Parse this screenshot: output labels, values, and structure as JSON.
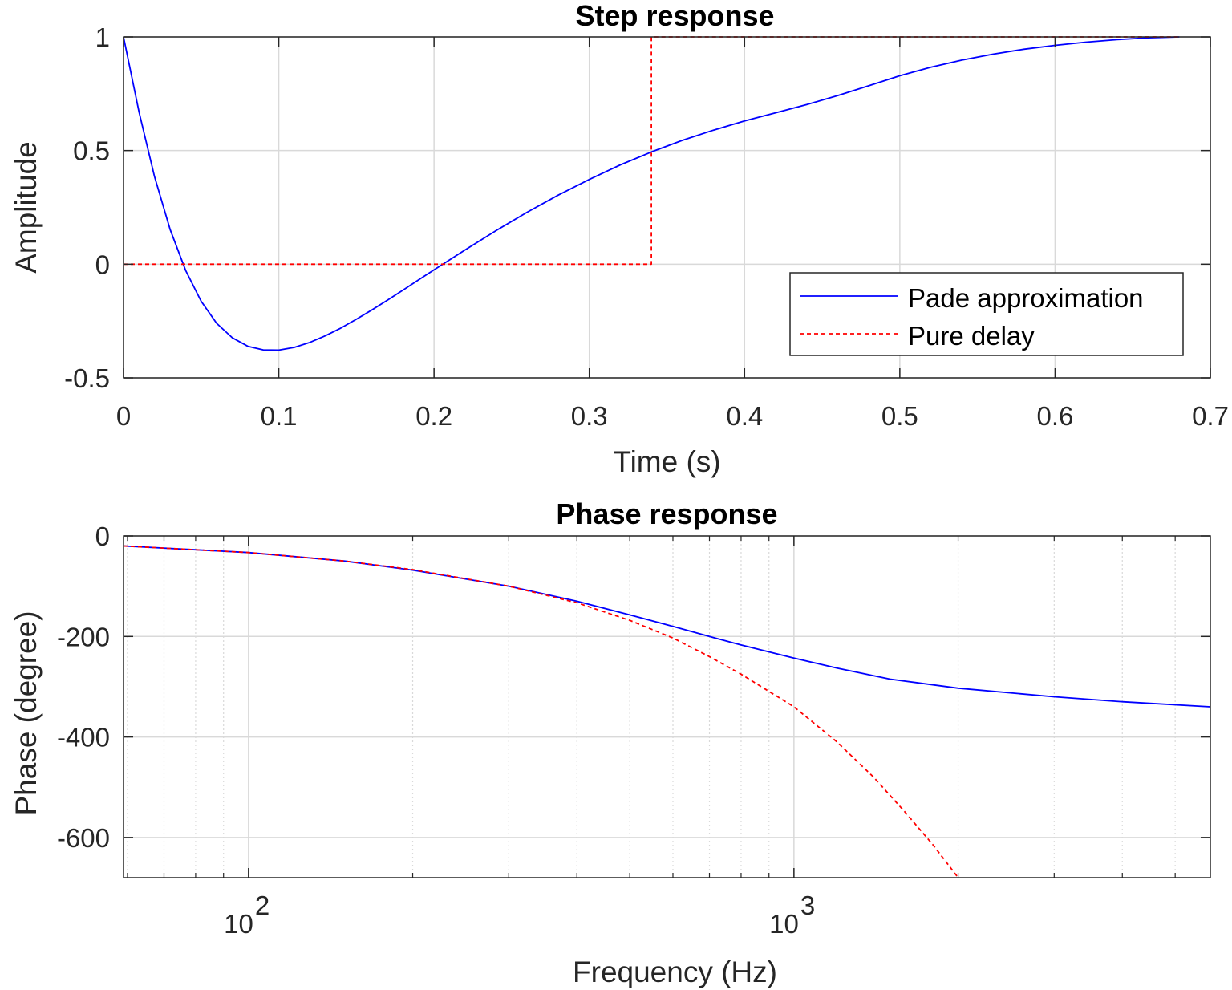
{
  "chart_data": [
    {
      "type": "line",
      "title": "Step response",
      "xlabel": "Time (s)",
      "ylabel": "Amplitude",
      "xlim": [
        0,
        0.7
      ],
      "ylim": [
        -0.5,
        1
      ],
      "xticks": [
        "0",
        "0.1",
        "0.2",
        "0.3",
        "0.4",
        "0.5",
        "0.6",
        "0.7"
      ],
      "yticks": [
        "-0.5",
        "0",
        "0.5",
        "1"
      ],
      "grid": true,
      "legend_position": "bottom-right",
      "colors": {
        "pade": "#0000ff",
        "delay": "#ff0000"
      },
      "series": [
        {
          "name": "Pade approximation",
          "style": "solid",
          "x": [
            0,
            0.01,
            0.02,
            0.03,
            0.04,
            0.05,
            0.06,
            0.07,
            0.08,
            0.09,
            0.1,
            0.11,
            0.12,
            0.13,
            0.14,
            0.15,
            0.16,
            0.17,
            0.18,
            0.19,
            0.2,
            0.22,
            0.24,
            0.26,
            0.28,
            0.3,
            0.32,
            0.34,
            0.36,
            0.38,
            0.4,
            0.42,
            0.44,
            0.46,
            0.48,
            0.5,
            0.52,
            0.54,
            0.56,
            0.58,
            0.6,
            0.62,
            0.64,
            0.66,
            0.68
          ],
          "y": [
            1,
            0.669,
            0.385,
            0.153,
            -0.027,
            -0.163,
            -0.26,
            -0.323,
            -0.361,
            -0.377,
            -0.378,
            -0.366,
            -0.344,
            -0.315,
            -0.281,
            -0.242,
            -0.201,
            -0.158,
            -0.114,
            -0.069,
            -0.025,
            0.063,
            0.148,
            0.229,
            0.304,
            0.373,
            0.437,
            0.494,
            0.545,
            0.59,
            0.63,
            0.666,
            0.702,
            0.742,
            0.785,
            0.829,
            0.867,
            0.898,
            0.924,
            0.946,
            0.963,
            0.977,
            0.988,
            0.996,
            1.0
          ]
        },
        {
          "name": "Pure delay",
          "style": "dashed",
          "x": [
            0,
            0.34,
            0.34,
            0.68
          ],
          "y": [
            0,
            0,
            1,
            1
          ]
        }
      ]
    },
    {
      "type": "line",
      "title": "Phase response",
      "xlabel": "Frequency (Hz)",
      "ylabel": "Phase (degree)",
      "xscale": "log",
      "xlim": [
        59,
        5800
      ],
      "ylim": [
        -680,
        0
      ],
      "xticks": [
        {
          "value": 100,
          "base": "10",
          "exp": "2"
        },
        {
          "value": 1000,
          "base": "10",
          "exp": "3"
        }
      ],
      "yticks": [
        "0",
        "-200",
        "-400",
        "-600"
      ],
      "grid": true,
      "minor_grid": true,
      "colors": {
        "pade": "#0000ff",
        "delay": "#ff0000"
      },
      "series": [
        {
          "name": "Pade approximation",
          "style": "solid",
          "x": [
            59,
            100,
            150,
            200,
            300,
            400,
            500,
            600,
            700,
            800,
            1000,
            1200,
            1500,
            2000,
            3000,
            4000,
            5800
          ],
          "y": [
            -20,
            -33,
            -50,
            -68,
            -100,
            -130,
            -157,
            -180,
            -200,
            -217,
            -243,
            -263,
            -285,
            -303,
            -320,
            -330,
            -340
          ]
        },
        {
          "name": "Pure delay",
          "style": "dashed",
          "x": [
            59,
            100,
            150,
            200,
            300,
            400,
            500,
            600,
            700,
            800,
            1000,
            1200,
            1400,
            1600,
            1800,
            2000
          ],
          "y": [
            -20,
            -33,
            -50,
            -67,
            -100,
            -133,
            -168,
            -203,
            -240,
            -275,
            -340,
            -410,
            -480,
            -550,
            -615,
            -680
          ]
        }
      ]
    }
  ]
}
